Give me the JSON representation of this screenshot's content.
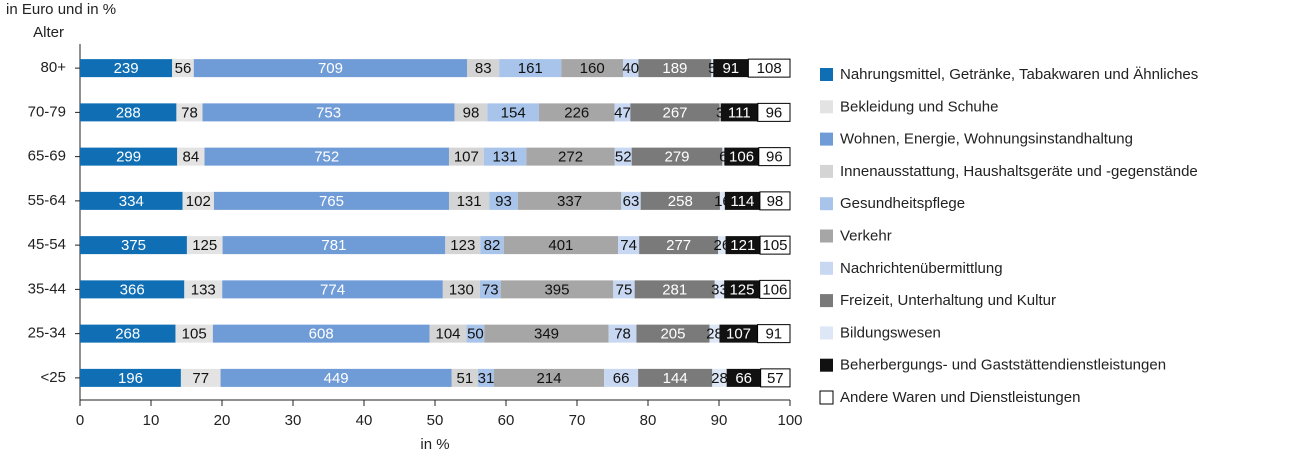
{
  "chart_data": {
    "type": "bar_stacked_percent",
    "orientation": "horizontal",
    "title": "in Euro und in %",
    "y_label": "Alter",
    "x_label": "in %",
    "categories": [
      "80+",
      "70-79",
      "65-69",
      "55-64",
      "45-54",
      "35-44",
      "25-34",
      "<25"
    ],
    "xlim": [
      0,
      100
    ],
    "xticks": [
      0,
      10,
      20,
      30,
      40,
      50,
      60,
      70,
      80,
      90,
      100
    ],
    "series": [
      {
        "name": "Nahrungsmittel, Getränke, Tabakwaren und Ähnliches",
        "color": "#0f6eb4",
        "values": [
          239,
          288,
          299,
          334,
          375,
          366,
          268,
          196
        ]
      },
      {
        "name": "Bekleidung und Schuhe",
        "color": "#e3e3e3",
        "values": [
          56,
          78,
          84,
          102,
          125,
          133,
          105,
          77
        ]
      },
      {
        "name": "Wohnen, Energie, Wohnungsinstandhaltung",
        "color": "#6f9bd6",
        "values": [
          709,
          753,
          752,
          765,
          781,
          774,
          608,
          449
        ]
      },
      {
        "name": "Innenausstattung, Haushaltsgeräte und -gegenstände",
        "color": "#d4d4d4",
        "values": [
          83,
          98,
          107,
          131,
          123,
          130,
          104,
          51
        ]
      },
      {
        "name": "Gesundheitspflege",
        "color": "#a8c4ea",
        "values": [
          161,
          154,
          131,
          93,
          82,
          73,
          50,
          31
        ]
      },
      {
        "name": "Verkehr",
        "color": "#a6a6a6",
        "values": [
          160,
          226,
          272,
          337,
          401,
          395,
          349,
          214
        ]
      },
      {
        "name": "Nachrichtenübermittlung",
        "color": "#c8d8f2",
        "values": [
          40,
          47,
          52,
          63,
          74,
          75,
          78,
          66
        ]
      },
      {
        "name": "Freizeit, Unterhaltung und Kultur",
        "color": "#7a7a7a",
        "values": [
          189,
          267,
          279,
          258,
          277,
          281,
          205,
          144
        ]
      },
      {
        "name": "Bildungswesen",
        "color": "#dde7f5",
        "values": [
          5,
          3,
          6,
          16,
          26,
          33,
          28,
          28
        ]
      },
      {
        "name": "Beherbergungs- und Gaststättendienstleistungen",
        "color": "#111111",
        "values": [
          91,
          111,
          106,
          114,
          121,
          125,
          107,
          66
        ]
      },
      {
        "name": "Andere Waren und Dienstleistungen",
        "color": "#ffffff",
        "values": [
          108,
          96,
          96,
          98,
          105,
          106,
          91,
          57
        ]
      }
    ]
  }
}
